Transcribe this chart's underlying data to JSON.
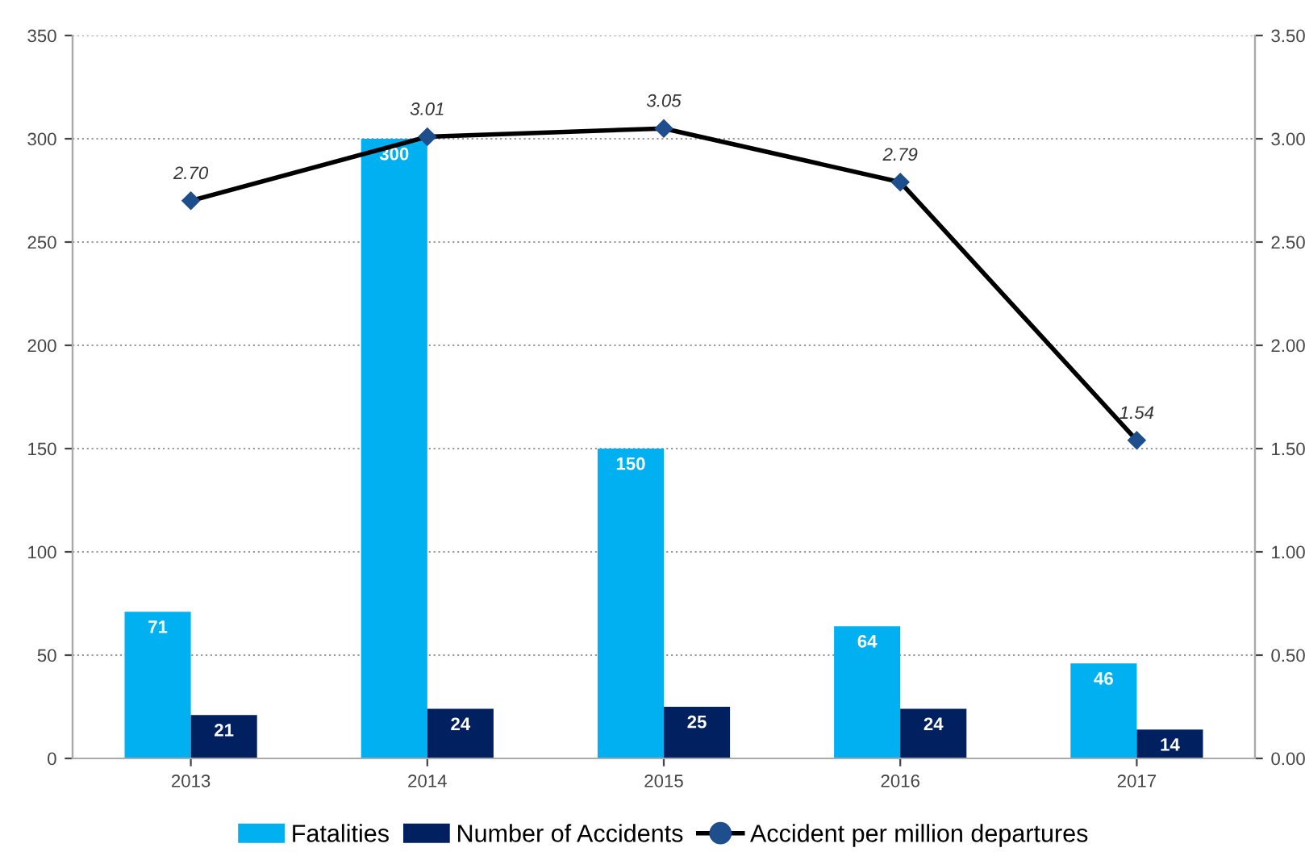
{
  "chart_data": {
    "type": "bar",
    "categories": [
      "2013",
      "2014",
      "2015",
      "2016",
      "2017"
    ],
    "series": [
      {
        "name": "Fatalities",
        "color": "#00b0f0",
        "values": [
          71,
          300,
          150,
          64,
          46
        ]
      },
      {
        "name": "Number of Accidents",
        "color": "#002060",
        "values": [
          21,
          24,
          25,
          24,
          14
        ]
      },
      {
        "name": "Accident per million departures",
        "type": "line",
        "axis": "y2",
        "color": "#000000",
        "marker": "diamond",
        "values": [
          2.7,
          3.01,
          3.05,
          2.79,
          1.54
        ],
        "value_labels": [
          "2.70",
          "3.01",
          "3.05",
          "2.79",
          "1.54"
        ]
      }
    ],
    "ylim": [
      0,
      350
    ],
    "yticks": [
      0,
      50,
      100,
      150,
      200,
      250,
      300,
      350
    ],
    "y2lim": [
      0,
      3.5
    ],
    "y2ticks": [
      {
        "value": 0,
        "label": "0.00"
      },
      {
        "value": 0.5,
        "label": "0.50"
      },
      {
        "value": 1,
        "label": "1.00"
      },
      {
        "value": 1.5,
        "label": "1.50"
      },
      {
        "value": 2,
        "label": "2.00"
      },
      {
        "value": 2.5,
        "label": "2.50"
      },
      {
        "value": 3,
        "label": "3.00"
      },
      {
        "value": 3.5,
        "label": "3.50"
      }
    ],
    "grid": "y",
    "legend": "bottom",
    "data_labels": true
  }
}
